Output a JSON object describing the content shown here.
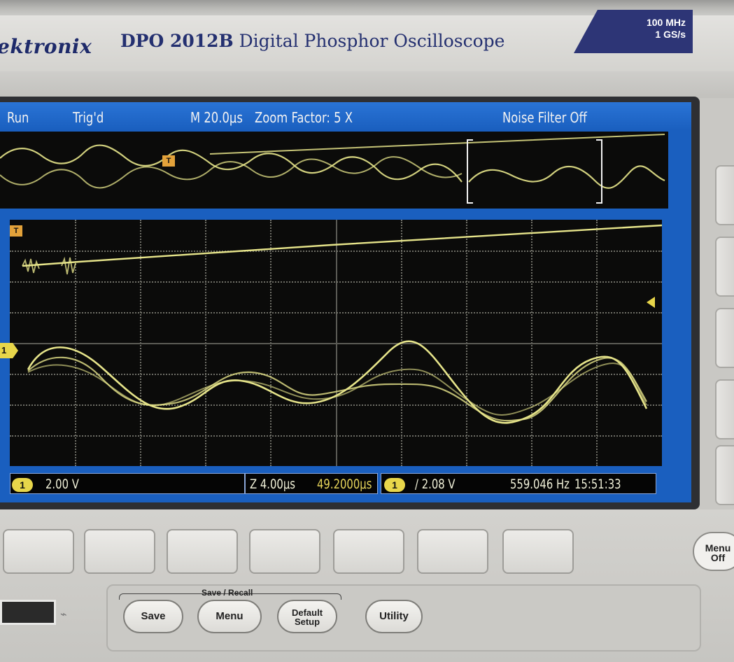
{
  "bezel": {
    "brand": "ektronix",
    "model": "DPO 2012B",
    "description": "Digital Phosphor Oscilloscope",
    "bandwidth": "100 MHz",
    "sample_rate": "1 GS/s"
  },
  "screen": {
    "header": {
      "run_state": "Run",
      "trigger_state": "Trig'd",
      "timebase": "M 20.0μs",
      "zoom": "Zoom Factor: 5 X",
      "noise_filter": "Noise Filter Off"
    },
    "markers": {
      "trigger_tag": "T",
      "channel_tag": "1"
    },
    "status": {
      "ch_badge": "1",
      "ch1_scale": "2.00 V",
      "zoom_scale": "Z 4.00μs",
      "position": "49.2000μs",
      "trig_badge": "1",
      "trigger_level": "/ 2.08 V",
      "frequency": "559.046 Hz",
      "time": "15:51:33"
    }
  },
  "controls": {
    "menu_off_line1": "Menu",
    "menu_off_line2": "Off",
    "save_recall_group": "Save / Recall",
    "save": "Save",
    "menu": "Menu",
    "default_line1": "Default",
    "default_line2": "Setup",
    "utility": "Utility"
  },
  "colors": {
    "trace": "#e6e48a",
    "screen_blue": "#1a5fbf",
    "badge": "#2d3576"
  }
}
